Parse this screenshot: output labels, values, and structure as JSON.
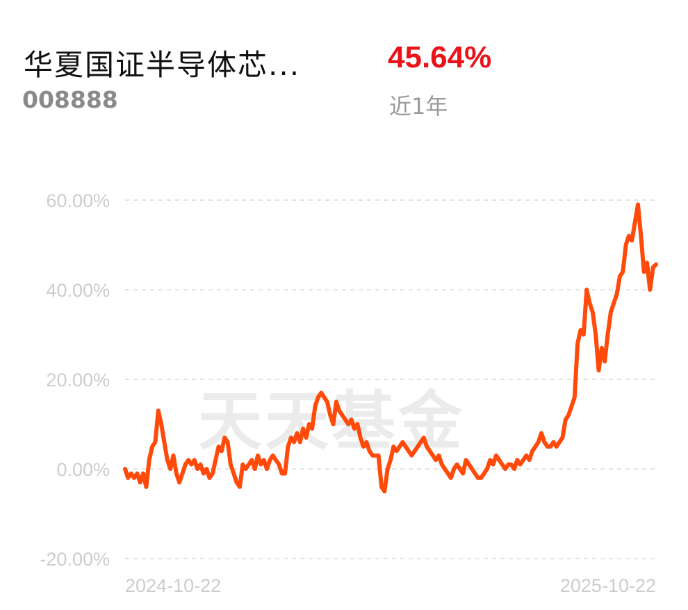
{
  "header": {
    "fund_name": "华夏国证半导体芯...",
    "fund_code": "008888",
    "return_value": "45.64%",
    "return_period": "近1年"
  },
  "watermark": "天天基金",
  "colors": {
    "line": "#ff4a0a",
    "return": "#e8141a",
    "grid": "#e3e3e3",
    "tick": "#cccccc"
  },
  "chart_data": {
    "type": "line",
    "title": "",
    "xlabel": "",
    "ylabel": "",
    "ylim": [
      -20,
      60
    ],
    "y_ticks": [
      60,
      40,
      20,
      0,
      -20
    ],
    "y_tick_labels": [
      "60.00%",
      "40.00%",
      "20.00%",
      "0.00%",
      "-20.00%"
    ],
    "x_tick_labels": [
      "2024-10-22",
      "2025-10-22"
    ],
    "grid": "horizontal dashed",
    "series": [
      {
        "values": [
          0,
          -2,
          -1,
          -2,
          -1,
          -3,
          -1,
          -4,
          2,
          5,
          6,
          13,
          10,
          6,
          2,
          0,
          3,
          -1,
          -3,
          -1,
          1,
          2,
          1,
          2,
          0,
          1,
          -1,
          0,
          -2,
          -1,
          2,
          5,
          4,
          7,
          6,
          1,
          -1,
          -3,
          -4,
          1,
          0,
          1,
          2,
          0,
          3,
          1,
          2,
          0,
          2,
          3,
          2,
          1,
          -1,
          -1,
          5,
          7,
          6,
          8,
          6,
          9,
          7,
          10,
          9,
          14,
          16,
          17,
          16,
          15,
          12,
          10,
          15,
          13,
          12,
          11,
          10,
          11,
          9,
          10,
          7,
          5,
          6,
          4,
          3,
          3,
          3,
          -4,
          -5,
          0,
          2,
          5,
          4,
          5,
          6,
          5,
          4,
          3,
          4,
          5,
          6,
          7,
          5,
          4,
          3,
          2,
          3,
          1,
          0,
          -1,
          -2,
          0,
          1,
          0,
          -1,
          2,
          1,
          0,
          -1,
          -2,
          -2,
          -1,
          0,
          2,
          1,
          3,
          2,
          1,
          0,
          1,
          1,
          0,
          2,
          1,
          2,
          3,
          2,
          4,
          5,
          6,
          8,
          6,
          5,
          5,
          6,
          5,
          6,
          7,
          11,
          12,
          14,
          16,
          28,
          31,
          30,
          40,
          37,
          35,
          30,
          22,
          27,
          24,
          30,
          35,
          37,
          39,
          43,
          44,
          50,
          52,
          51,
          55,
          59,
          52,
          44,
          46,
          40,
          45,
          45.64
        ]
      }
    ]
  }
}
